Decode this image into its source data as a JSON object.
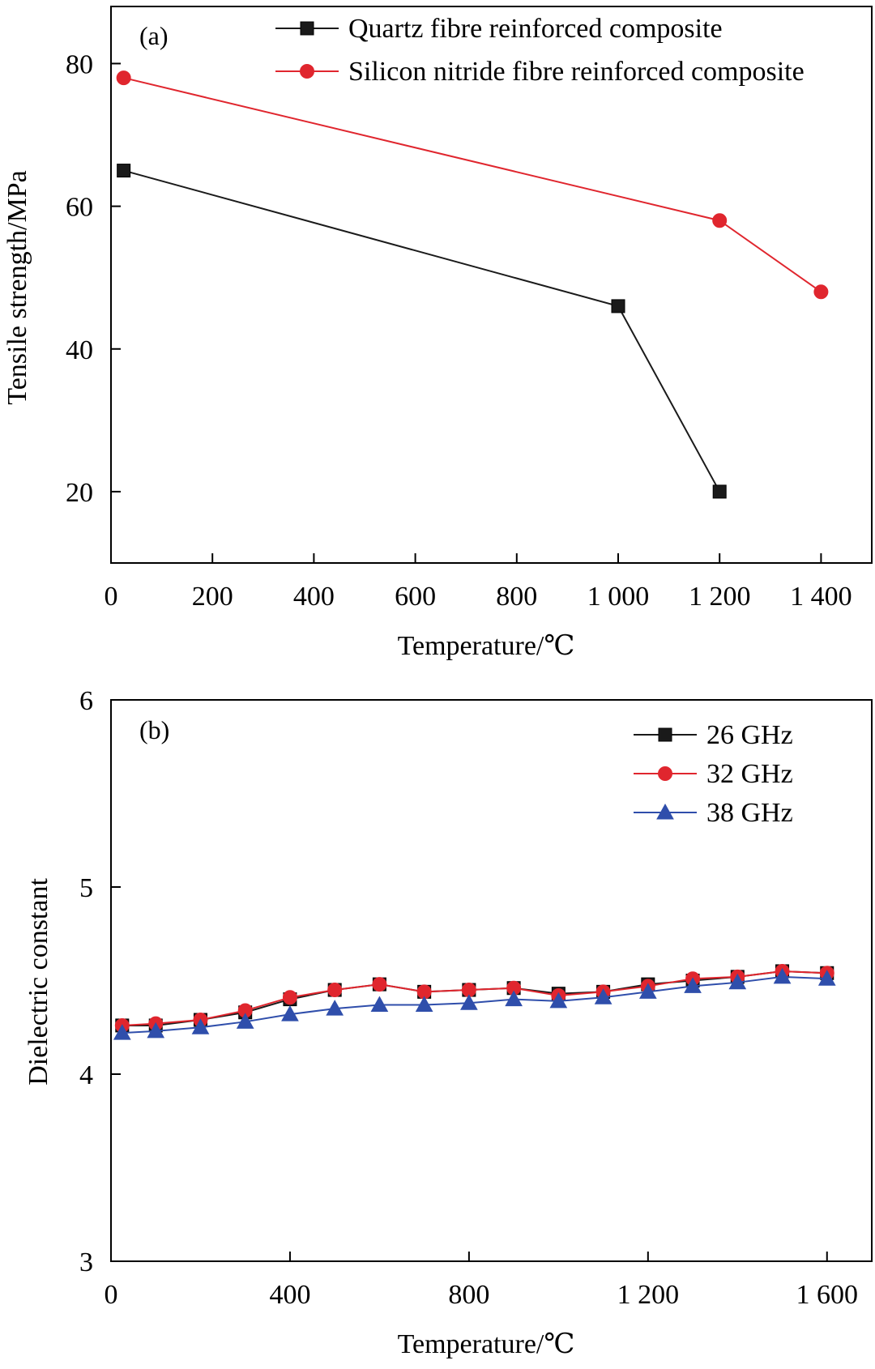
{
  "chart_data": [
    {
      "type": "line",
      "panel_label": "(a)",
      "xlabel": "Temperature/℃",
      "ylabel": "Tensile strength/MPa",
      "xlim": [
        0,
        1500
      ],
      "ylim": [
        10,
        88
      ],
      "xticks": [
        0,
        200,
        400,
        600,
        800,
        1000,
        1200,
        1400
      ],
      "xtick_labels": [
        "0",
        "200",
        "400",
        "600",
        "800",
        "1 000",
        "1 200",
        "1 400"
      ],
      "yticks": [
        20,
        40,
        60,
        80
      ],
      "ytick_labels": [
        "20",
        "40",
        "60",
        "80"
      ],
      "legend_position": "top-right",
      "series": [
        {
          "name": "Quartz fibre reinforced composite",
          "color": "#1a1a1a",
          "marker": "square",
          "x": [
            25,
            1000,
            1200
          ],
          "values": [
            65,
            46,
            20
          ]
        },
        {
          "name": "Silicon nitride fibre reinforced composite",
          "color": "#e0262e",
          "marker": "circle",
          "x": [
            25,
            1200,
            1400
          ],
          "values": [
            78,
            58,
            48
          ]
        }
      ]
    },
    {
      "type": "line",
      "panel_label": "(b)",
      "xlabel": "Temperature/℃",
      "ylabel": "Dielectric constant",
      "xlim": [
        0,
        1700
      ],
      "ylim": [
        3,
        6
      ],
      "xticks": [
        0,
        400,
        800,
        1200,
        1600
      ],
      "xtick_labels": [
        "0",
        "400",
        "800",
        "1 200",
        "1 600"
      ],
      "yticks": [
        3,
        4,
        5,
        6
      ],
      "ytick_labels": [
        "3",
        "4",
        "5",
        "6"
      ],
      "legend_position": "top-right",
      "x": [
        25,
        100,
        200,
        300,
        400,
        500,
        600,
        700,
        800,
        900,
        1000,
        1100,
        1200,
        1300,
        1400,
        1500,
        1600
      ],
      "series": [
        {
          "name": "26 GHz",
          "color": "#1a1a1a",
          "marker": "square",
          "values": [
            4.26,
            4.26,
            4.29,
            4.33,
            4.4,
            4.45,
            4.48,
            4.44,
            4.45,
            4.46,
            4.43,
            4.44,
            4.48,
            4.5,
            4.52,
            4.55,
            4.54
          ]
        },
        {
          "name": "32 GHz",
          "color": "#e0262e",
          "marker": "circle",
          "values": [
            4.26,
            4.27,
            4.29,
            4.34,
            4.41,
            4.45,
            4.48,
            4.44,
            4.45,
            4.46,
            4.42,
            4.44,
            4.47,
            4.51,
            4.52,
            4.55,
            4.54
          ]
        },
        {
          "name": "38 GHz",
          "color": "#2f4eab",
          "marker": "triangle",
          "values": [
            4.22,
            4.23,
            4.25,
            4.28,
            4.32,
            4.35,
            4.37,
            4.37,
            4.38,
            4.4,
            4.39,
            4.41,
            4.44,
            4.47,
            4.49,
            4.52,
            4.51
          ]
        }
      ]
    }
  ]
}
